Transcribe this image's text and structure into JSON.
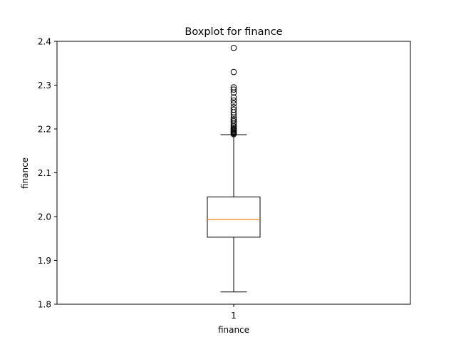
{
  "chart_data": {
    "type": "box",
    "title": "Boxplot for finance",
    "xlabel": "finance",
    "ylabel": "finance",
    "categories": [
      "1"
    ],
    "ylim": [
      1.8,
      2.4
    ],
    "yticks": [
      1.8,
      1.9,
      2.0,
      2.1,
      2.2,
      2.3,
      2.4
    ],
    "ytick_labels": [
      "1.8",
      "1.9",
      "2.0",
      "2.1",
      "2.2",
      "2.3",
      "2.4"
    ],
    "xtick_labels": [
      "1"
    ],
    "grid": false,
    "box": {
      "whisker_low": 1.828,
      "q1": 1.953,
      "median": 1.993,
      "q3": 2.045,
      "whisker_high": 2.187,
      "outliers": [
        2.188,
        2.19,
        2.192,
        2.194,
        2.196,
        2.198,
        2.2,
        2.203,
        2.206,
        2.21,
        2.214,
        2.218,
        2.222,
        2.226,
        2.232,
        2.238,
        2.244,
        2.25,
        2.258,
        2.265,
        2.272,
        2.283,
        2.29,
        2.295,
        2.33,
        2.385
      ]
    },
    "colors": {
      "box": "#000000",
      "median": "#ff7f0e",
      "outlier_edge": "#000000",
      "background": "#ffffff"
    }
  }
}
